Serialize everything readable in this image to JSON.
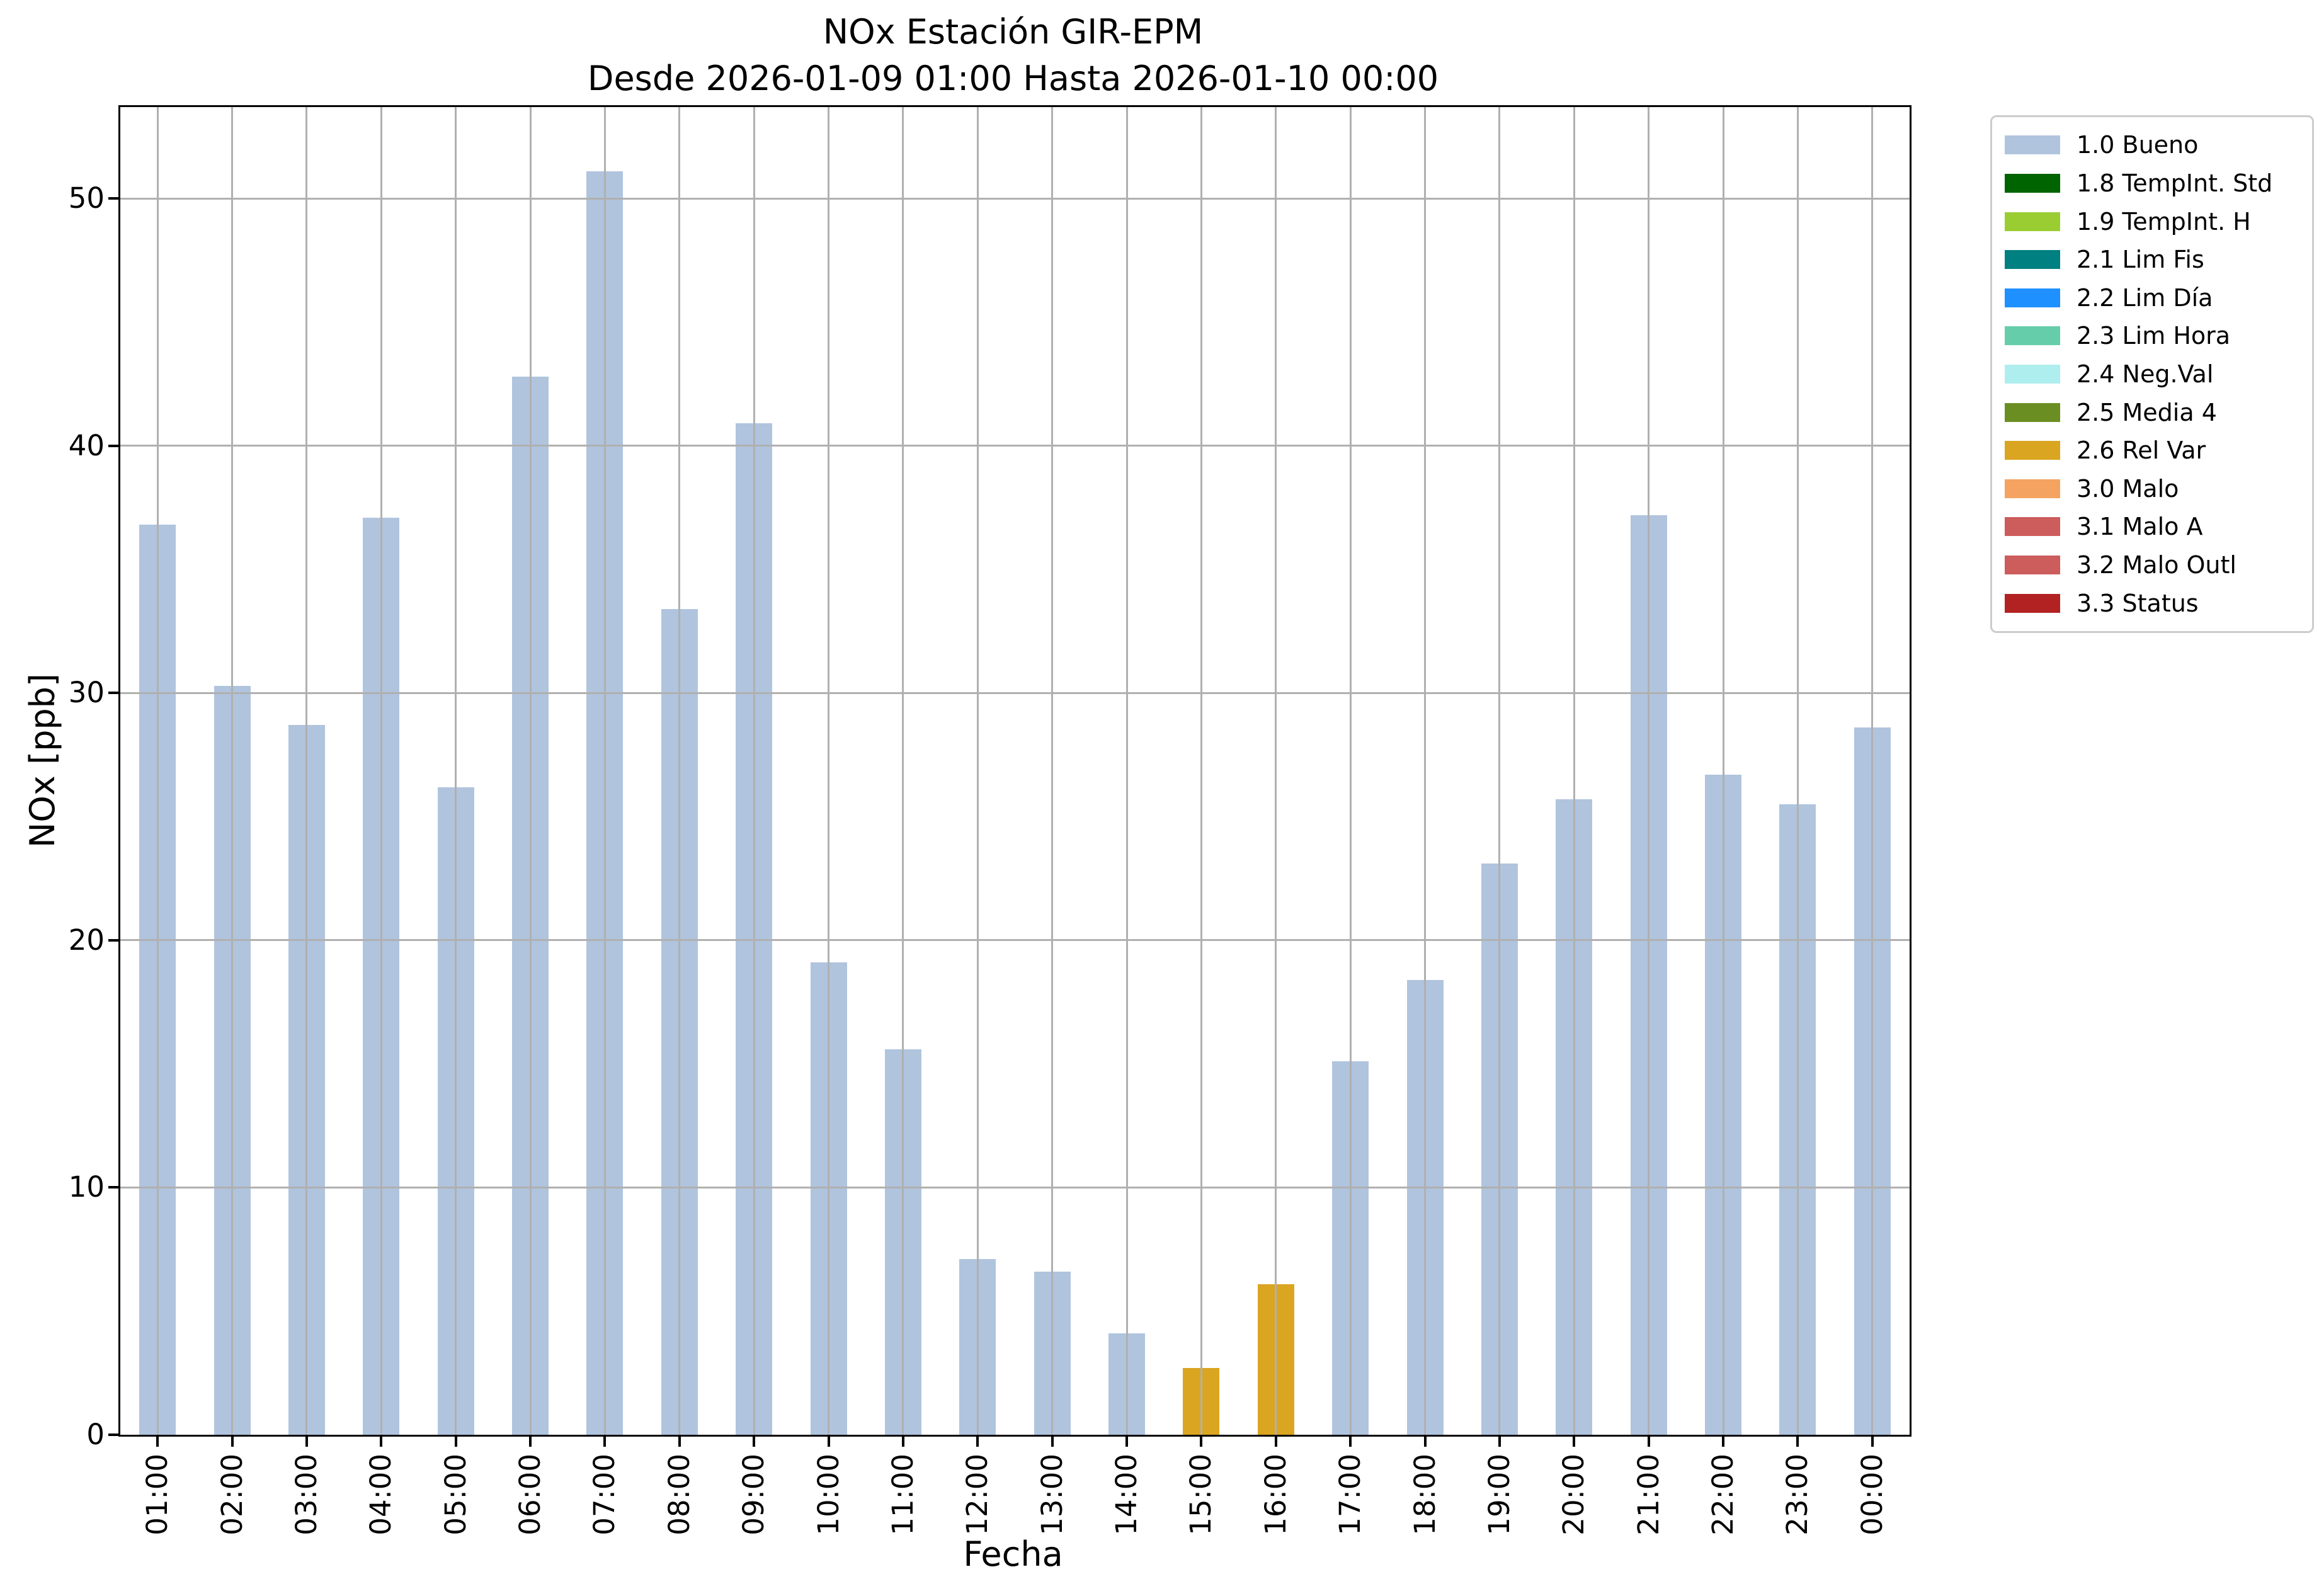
{
  "title": {
    "line1": "NOx Estación GIR-EPM",
    "line2": "Desde 2026-01-09 01:00 Hasta 2026-01-10 00:00"
  },
  "chart_data": {
    "type": "bar",
    "title": "NOx Estación GIR-EPM\nDesde 2026-01-09 01:00 Hasta 2026-01-10 00:00",
    "xlabel": "Fecha",
    "ylabel": "NOx [ppb]",
    "ylim": [
      0,
      53.7
    ],
    "yticks": [
      0,
      10,
      20,
      30,
      40,
      50
    ],
    "grid": "on, gray, drawn over bars",
    "legend_position": "outside upper right",
    "categories": [
      "01:00",
      "02:00",
      "03:00",
      "04:00",
      "05:00",
      "06:00",
      "07:00",
      "08:00",
      "09:00",
      "10:00",
      "11:00",
      "12:00",
      "13:00",
      "14:00",
      "15:00",
      "16:00",
      "17:00",
      "18:00",
      "19:00",
      "20:00",
      "21:00",
      "22:00",
      "23:00",
      "00:00"
    ],
    "values": [
      36.8,
      30.3,
      28.7,
      37.1,
      26.2,
      42.8,
      51.1,
      33.4,
      40.9,
      19.1,
      15.6,
      7.1,
      6.6,
      4.1,
      2.7,
      6.1,
      15.1,
      18.4,
      23.1,
      25.7,
      37.2,
      26.7,
      25.5,
      28.6
    ],
    "flags": [
      "1.0",
      "1.0",
      "1.0",
      "1.0",
      "1.0",
      "1.0",
      "1.0",
      "1.0",
      "1.0",
      "1.0",
      "1.0",
      "1.0",
      "1.0",
      "1.0",
      "2.6",
      "2.6",
      "1.0",
      "1.0",
      "1.0",
      "1.0",
      "1.0",
      "1.0",
      "1.0",
      "1.0"
    ],
    "legend": [
      {
        "code": "1.0",
        "label": "1.0 Bueno",
        "color": "#B0C4DE"
      },
      {
        "code": "1.8",
        "label": "1.8 TempInt. Std",
        "color": "#006400"
      },
      {
        "code": "1.9",
        "label": "1.9 TempInt. H",
        "color": "#9ACD32"
      },
      {
        "code": "2.1",
        "label": "2.1 Lim Fis",
        "color": "#008080"
      },
      {
        "code": "2.2",
        "label": "2.2 Lim Día",
        "color": "#1E90FF"
      },
      {
        "code": "2.3",
        "label": "2.3 Lim Hora",
        "color": "#66CDAA"
      },
      {
        "code": "2.4",
        "label": "2.4 Neg.Val",
        "color": "#AFEEEE"
      },
      {
        "code": "2.5",
        "label": "2.5 Media 4",
        "color": "#6B8E23"
      },
      {
        "code": "2.6",
        "label": "2.6 Rel Var",
        "color": "#DAA520"
      },
      {
        "code": "3.0",
        "label": "3.0 Malo",
        "color": "#F4A460"
      },
      {
        "code": "3.1",
        "label": "3.1 Malo A",
        "color": "#CD5C5C00"
      },
      {
        "code": "3.2",
        "label": "3.2 Malo Outl",
        "color": "#CD5C5C"
      },
      {
        "code": "3.3",
        "label": "3.3 Status",
        "color": "#B22222"
      }
    ],
    "colors_note": {
      "bar_default": "#B0C4DE",
      "bar_relvar": "#DAA520",
      "gridline": "#b0b0b0",
      "spine": "#000000"
    }
  }
}
